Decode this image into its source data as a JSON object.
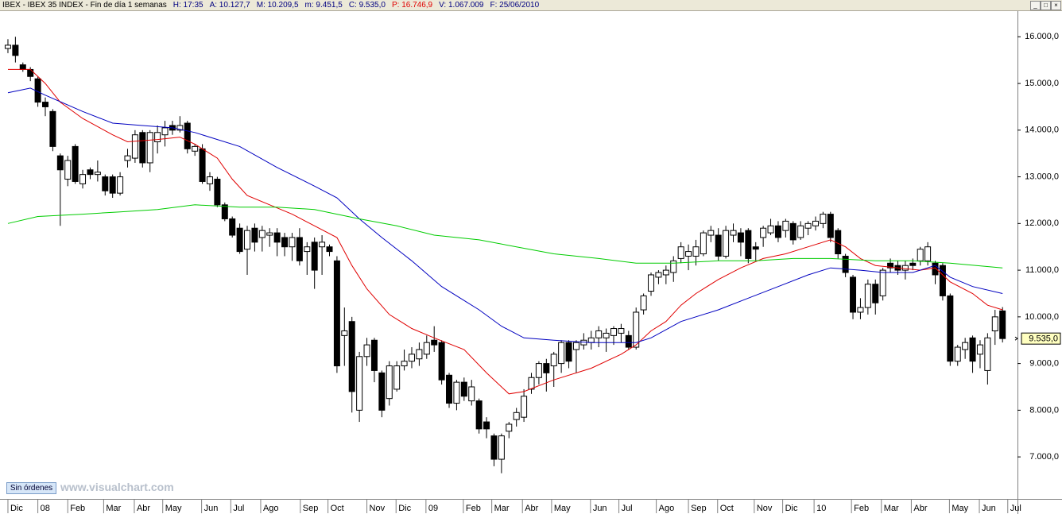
{
  "header": [
    "IBEX - IBEX 35 INDEX - Fin de día 1 semanas",
    "H: 17:35",
    "A: 10.127,7",
    "M: 10.209,5",
    "m: 9.451,5",
    "C: 9.535,0",
    "P: 16.746,9",
    "V: 1.067.009",
    "F: 25/06/2010"
  ],
  "button": "Sin órdenes",
  "watermark": "www.visualchart.com",
  "chart_data": {
    "type": "candlestick",
    "open": [
      15750,
      15820,
      15400,
      15300,
      15100,
      14600,
      14400,
      13450,
      12950,
      13650,
      12850,
      13150,
      13050,
      13000,
      13000,
      12650,
      13350,
      13400,
      13950,
      13300,
      13750,
      13900,
      14100,
      14000,
      14150,
      13550,
      13600,
      12850,
      12950,
      12400,
      12100,
      11900,
      11450,
      11900,
      11700,
      11750,
      11800,
      11700,
      11500,
      11700,
      11400,
      11600,
      11500,
      11500,
      11200,
      9600,
      9900,
      8000,
      9150,
      9500,
      8800,
      8250,
      8450,
      8950,
      9050,
      9100,
      9200,
      9500,
      9450,
      8750,
      8150,
      8600,
      8200,
      8200,
      7750,
      7450,
      6950,
      7550,
      7800,
      7850,
      8450,
      8700,
      9000,
      8950,
      9000,
      9450,
      9300,
      9400,
      9450,
      9550,
      9550,
      9600,
      9650,
      9600,
      9350,
      10150,
      10550,
      10850,
      10900,
      10950,
      11250,
      11300,
      11300,
      11350,
      11750,
      11750,
      11300,
      11750,
      11800,
      11850,
      11500,
      11700,
      11800,
      11950,
      11850,
      12000,
      11700,
      11900,
      11950,
      12000,
      12200,
      11850,
      11300,
      10850,
      10100,
      10200,
      10700,
      10450,
      11150,
      11100,
      11000,
      11150,
      11200,
      11200,
      11150,
      11100,
      10450,
      9050,
      9300,
      9550,
      9200,
      8850,
      9700,
      10127.7
    ],
    "high": [
      15950,
      16000,
      15450,
      15350,
      15150,
      14700,
      14450,
      13500,
      13450,
      13700,
      13150,
      13200,
      13350,
      13050,
      13050,
      13100,
      13600,
      14000,
      14000,
      14000,
      14100,
      14200,
      14200,
      14300,
      14200,
      13700,
      13700,
      13100,
      13000,
      12450,
      12150,
      12000,
      11950,
      12000,
      11950,
      11900,
      11900,
      11800,
      11800,
      11900,
      11600,
      11700,
      11750,
      11550,
      11300,
      10200,
      10000,
      9250,
      9550,
      9550,
      8850,
      9050,
      9050,
      9300,
      9350,
      9450,
      9600,
      9800,
      9500,
      8800,
      8650,
      8700,
      8650,
      8250,
      7850,
      7500,
      7500,
      7750,
      8050,
      8450,
      8800,
      9050,
      9100,
      9250,
      9500,
      9500,
      9500,
      9650,
      9700,
      9800,
      9750,
      9800,
      9850,
      9700,
      10200,
      10500,
      10950,
      11000,
      11100,
      11300,
      11600,
      11550,
      11650,
      11850,
      11950,
      11900,
      11950,
      12000,
      11900,
      11900,
      11600,
      11950,
      12100,
      12050,
      12100,
      12050,
      12050,
      12050,
      12150,
      12250,
      12250,
      11900,
      11350,
      10900,
      10400,
      10800,
      10800,
      11050,
      11250,
      11200,
      11200,
      11250,
      11500,
      11600,
      11200,
      11150,
      10500,
      9400,
      9550,
      9600,
      9500,
      9650,
      10150,
      10209.5
    ],
    "low": [
      15650,
      15450,
      15250,
      15050,
      14500,
      14300,
      13550,
      11950,
      12800,
      12850,
      12750,
      12950,
      12900,
      12600,
      12550,
      12600,
      13200,
      13300,
      13200,
      13100,
      13500,
      13650,
      13900,
      13950,
      13500,
      13450,
      12850,
      12700,
      12350,
      12050,
      11700,
      11350,
      10900,
      11400,
      11400,
      11500,
      11300,
      11300,
      11200,
      11100,
      10900,
      10600,
      10900,
      11300,
      8800,
      8950,
      7950,
      7750,
      8950,
      8600,
      7850,
      8100,
      8400,
      8850,
      8900,
      8950,
      9100,
      9250,
      8550,
      8050,
      8000,
      8200,
      8100,
      7500,
      7400,
      6800,
      6650,
      7400,
      7650,
      7750,
      8350,
      8550,
      8400,
      8500,
      8800,
      8900,
      8800,
      9300,
      9300,
      9350,
      9250,
      9400,
      9450,
      9300,
      9300,
      10050,
      10450,
      10700,
      10700,
      10750,
      11150,
      11000,
      11100,
      11300,
      11600,
      11200,
      11250,
      11600,
      11300,
      11150,
      11200,
      11500,
      11750,
      11600,
      11700,
      11550,
      11650,
      11750,
      11850,
      11900,
      11600,
      11250,
      10850,
      9950,
      9950,
      10050,
      10050,
      10350,
      10950,
      10900,
      10800,
      11000,
      11100,
      11100,
      10700,
      10350,
      8950,
      8950,
      9100,
      8800,
      8900,
      8550,
      9400,
      9451.5
    ],
    "close": [
      15820,
      15600,
      15300,
      15150,
      14600,
      14500,
      13650,
      13150,
      13350,
      12900,
      13050,
      13050,
      13100,
      12700,
      12650,
      13000,
      13450,
      13900,
      13300,
      13950,
      13950,
      14050,
      14000,
      14100,
      13600,
      13650,
      12900,
      13000,
      12400,
      12100,
      11750,
      11400,
      11850,
      11600,
      11850,
      11800,
      11600,
      11500,
      11700,
      11200,
      11500,
      11000,
      11600,
      11400,
      8950,
      9700,
      8400,
      9150,
      9400,
      8850,
      8000,
      8950,
      8950,
      9050,
      9200,
      9300,
      9450,
      9400,
      8650,
      8150,
      8600,
      8300,
      8500,
      7600,
      7600,
      6950,
      7450,
      7700,
      7950,
      8300,
      8700,
      9000,
      8800,
      9200,
      9450,
      9050,
      9450,
      9500,
      9550,
      9700,
      9650,
      9750,
      9750,
      9350,
      10100,
      10450,
      10900,
      10950,
      11000,
      11200,
      11500,
      11400,
      11500,
      11800,
      11850,
      11300,
      11850,
      11850,
      11600,
      11250,
      11450,
      11900,
      11950,
      11700,
      12050,
      11650,
      11950,
      12000,
      12050,
      12200,
      11700,
      11350,
      10950,
      10100,
      10200,
      10700,
      10300,
      11000,
      11050,
      11000,
      11100,
      11100,
      11450,
      11500,
      10900,
      10450,
      9050,
      9350,
      9450,
      9050,
      9400,
      9550,
      10000,
      9535
    ],
    "last_label": "9.535,0",
    "up_color": "#ffffff",
    "down_color": "#000000",
    "lines": [
      {
        "color": "#e00000",
        "x": [
          0,
          3,
          5,
          7,
          10,
          14,
          16,
          20,
          23,
          25,
          28,
          30,
          32,
          35,
          38,
          41,
          44,
          46,
          48,
          51,
          54,
          57,
          61,
          64,
          67,
          69,
          73,
          78,
          82,
          84,
          86,
          88,
          90,
          92,
          95,
          98,
          101,
          104,
          107,
          110,
          112,
          114,
          116,
          119,
          122,
          124,
          126,
          129,
          131,
          133
        ],
        "values": [
          15300,
          15300,
          15000,
          14600,
          14250,
          13900,
          13750,
          13800,
          13850,
          13700,
          13400,
          12950,
          12600,
          12400,
          12200,
          11950,
          11700,
          11100,
          10600,
          10050,
          9750,
          9550,
          9300,
          8800,
          8350,
          8400,
          8650,
          8900,
          9200,
          9400,
          9700,
          9900,
          10250,
          10500,
          10800,
          11050,
          11250,
          11350,
          11500,
          11650,
          11500,
          11250,
          11100,
          11050,
          11000,
          11050,
          10750,
          10500,
          10250,
          10150
        ]
      },
      {
        "color": "#0000c0",
        "x": [
          0,
          3,
          5,
          10,
          14,
          18,
          22,
          25,
          31,
          36,
          41,
          44,
          47,
          50,
          54,
          58,
          63,
          66,
          69,
          73,
          78,
          82,
          84,
          86,
          90,
          95,
          99,
          103,
          107,
          110,
          114,
          117,
          121,
          124,
          126,
          129,
          133
        ],
        "values": [
          14800,
          14900,
          14750,
          14400,
          14150,
          14100,
          14050,
          13950,
          13650,
          13200,
          12800,
          12550,
          12100,
          11700,
          11200,
          10650,
          10150,
          9800,
          9550,
          9500,
          9450,
          9450,
          9450,
          9550,
          9900,
          10150,
          10400,
          10650,
          10900,
          11050,
          11000,
          10950,
          10950,
          11100,
          10850,
          10650,
          10500
        ]
      },
      {
        "color": "#00cc00",
        "x": [
          0,
          4,
          10,
          15,
          20,
          25,
          31,
          36,
          41,
          47,
          52,
          57,
          63,
          68,
          73,
          79,
          84,
          89,
          95,
          100,
          105,
          110,
          116,
          121,
          126,
          133
        ],
        "values": [
          12000,
          12150,
          12200,
          12250,
          12300,
          12400,
          12350,
          12350,
          12300,
          12100,
          11950,
          11750,
          11650,
          11500,
          11350,
          11250,
          11150,
          11150,
          11200,
          11200,
          11250,
          11250,
          11200,
          11200,
          11150,
          11050
        ]
      }
    ],
    "xlim": [
      -1.06,
      135
    ],
    "xticks": [
      {
        "value": 0,
        "label": "Dic"
      },
      {
        "value": 4,
        "label": "08"
      },
      {
        "value": 8,
        "label": "Feb"
      },
      {
        "value": 12.8,
        "label": "Mar"
      },
      {
        "value": 16.9,
        "label": "Abr"
      },
      {
        "value": 20.7,
        "label": "May"
      },
      {
        "value": 25.9,
        "label": "Jun"
      },
      {
        "value": 29.8,
        "label": "Jul"
      },
      {
        "value": 33.8,
        "label": "Ago"
      },
      {
        "value": 39.1,
        "label": "Sep"
      },
      {
        "value": 42.8,
        "label": "Oct"
      },
      {
        "value": 48,
        "label": "Nov"
      },
      {
        "value": 51.9,
        "label": "Dic"
      },
      {
        "value": 55.9,
        "label": "09"
      },
      {
        "value": 60.9,
        "label": "Feb"
      },
      {
        "value": 64.7,
        "label": "Mar"
      },
      {
        "value": 68.8,
        "label": "Abr"
      },
      {
        "value": 72.7,
        "label": "May"
      },
      {
        "value": 77.9,
        "label": "Jun"
      },
      {
        "value": 81.7,
        "label": "Jul"
      },
      {
        "value": 86.7,
        "label": "Ago"
      },
      {
        "value": 91,
        "label": "Sep"
      },
      {
        "value": 94.9,
        "label": "Oct"
      },
      {
        "value": 99.8,
        "label": "Nov"
      },
      {
        "value": 103.6,
        "label": "Dic"
      },
      {
        "value": 107.8,
        "label": "10"
      },
      {
        "value": 112.8,
        "label": "Feb"
      },
      {
        "value": 116.8,
        "label": "Mar"
      },
      {
        "value": 120.8,
        "label": "Abr"
      },
      {
        "value": 125.9,
        "label": "May"
      },
      {
        "value": 129.9,
        "label": "Jun"
      },
      {
        "value": 133.7,
        "label": "Jul"
      }
    ],
    "ylim": [
      6100,
      16550
    ],
    "yticks": [
      {
        "value": 7000,
        "label": "7.000,0"
      },
      {
        "value": 8000,
        "label": "8.000,0"
      },
      {
        "value": 9000,
        "label": "9.000,0"
      },
      {
        "value": 10000,
        "label": "10.000,0"
      },
      {
        "value": 11000,
        "label": "11.000,0"
      },
      {
        "value": 12000,
        "label": "12.000,0"
      },
      {
        "value": 13000,
        "label": "13.000,0"
      },
      {
        "value": 14000,
        "label": "14.000,0"
      },
      {
        "value": 15000,
        "label": "15.000,0"
      },
      {
        "value": 16000,
        "label": "16.000,0"
      }
    ],
    "grid": false
  }
}
